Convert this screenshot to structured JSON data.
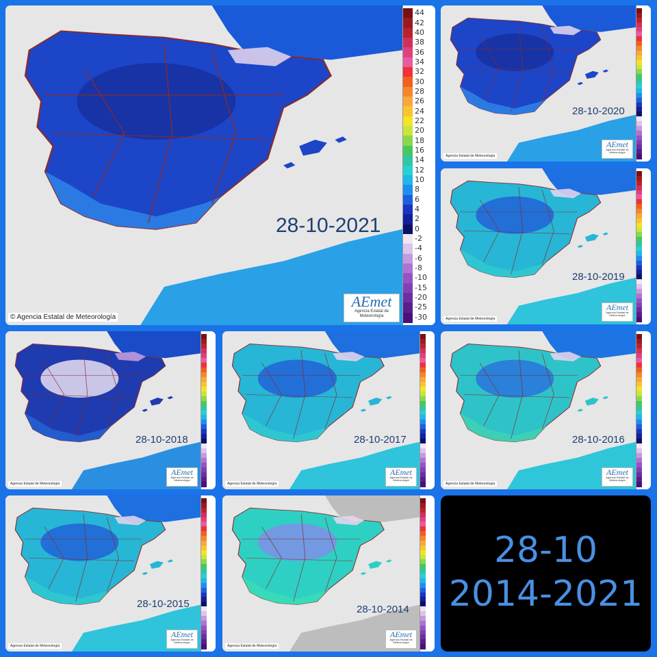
{
  "panels": [
    {
      "date": "28-10-2021",
      "copyright": "© Agencia Estatal de Meteorología",
      "logo": "AEmet",
      "logo_sub": "Agencia Estatal de Meteorología",
      "cold": "deep",
      "legend_labels": [
        "44",
        "42",
        "40",
        "38",
        "36",
        "34",
        "32",
        "30",
        "28",
        "26",
        "24",
        "22",
        "20",
        "18",
        "16",
        "14",
        "12",
        "10",
        "8",
        "6",
        "4",
        "2",
        "0",
        "-2",
        "-4",
        "-6",
        "-8",
        "-10",
        "-15",
        "-20",
        "-25",
        "-30"
      ]
    },
    {
      "date": "28-10-2020",
      "copyright": "Agencia Estatal de Meteorología",
      "logo": "AEmet",
      "logo_sub": "Agencia Estatal de Meteorología",
      "cold": "deep"
    },
    {
      "date": "28-10-2019",
      "copyright": "Agencia Estatal de Meteorología",
      "logo": "AEmet",
      "logo_sub": "Agencia Estatal de Meteorología",
      "cold": "mild"
    },
    {
      "date": "28-10-2018",
      "copyright": "Agencia Estatal de Meteorología",
      "logo": "AEmet",
      "logo_sub": "Agencia Estatal de Meteorología",
      "cold": "frost"
    },
    {
      "date": "28-10-2017",
      "copyright": "Agencia Estatal de Meteorología",
      "logo": "AEmet",
      "logo_sub": "Agencia Estatal de Meteorología",
      "cold": "mild"
    },
    {
      "date": "28-10-2016",
      "copyright": "Agencia Estatal de Meteorología",
      "logo": "AEmet",
      "logo_sub": "Agencia Estatal de Meteorología",
      "cold": "warm"
    },
    {
      "date": "28-10-2015",
      "copyright": "Agencia Estatal de Meteorología",
      "logo": "AEmet",
      "logo_sub": "Agencia Estatal de Meteorología",
      "cold": "mild"
    },
    {
      "date": "28-10-2014",
      "copyright": "Agencia Estatal de Meteorología",
      "logo": "AEmet",
      "logo_sub": "Agencia Estatal de Meteorología",
      "cold": "gray"
    }
  ],
  "summary": {
    "line1": "28-10",
    "line2": "2014-2021"
  },
  "legend_colors": [
    "#7a0f14",
    "#9c1a1f",
    "#b8232c",
    "#d1305a",
    "#e0407f",
    "#ea5aa0",
    "#f0303a",
    "#f25f1d",
    "#f5862a",
    "#f9a73a",
    "#f7c52c",
    "#f4e327",
    "#c9e53b",
    "#8bd94a",
    "#46c95c",
    "#2fc6a6",
    "#27d1cf",
    "#1fb8e9",
    "#1c8ff0",
    "#1c5fe0",
    "#1a35c2",
    "#13209a",
    "#0a1266",
    "#f0e6f4",
    "#dbc5ec",
    "#c39be0",
    "#ad74d3",
    "#9753c4",
    "#8140b6",
    "#6c2ea2",
    "#5a1d8c",
    "#48107a"
  ],
  "colors": {
    "background": "#1a73e8",
    "land_deep": "#1d45c8",
    "land_mild": "#22b0d8",
    "sea_deep": "#1a55d8",
    "sea_mild": "#30c0dd",
    "frame": "#ffffff",
    "text_date": "#1d3f73",
    "summary_text": "#4a90e2"
  }
}
